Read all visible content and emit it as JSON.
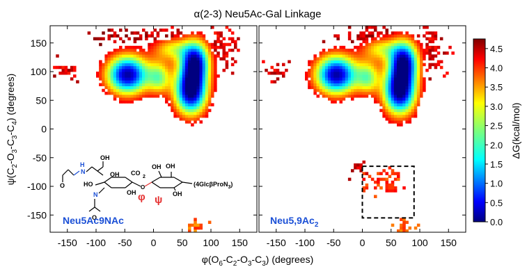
{
  "chart_data": {
    "type": "heatmap",
    "title": "α(2-3) Neu5Ac-Gal Linkage",
    "xlabel": {
      "base": "φ(O",
      "parts": [
        [
          "6",
          "sub"
        ],
        [
          "-C",
          ""
        ],
        [
          "2",
          "sub"
        ],
        [
          "-O",
          ""
        ],
        [
          "3",
          "sub"
        ],
        [
          "-C",
          ""
        ],
        [
          "3",
          "sub"
        ],
        [
          ") (degrees)",
          ""
        ]
      ]
    },
    "ylabel": {
      "base": "ψ(C",
      "parts": [
        [
          "2",
          "sub"
        ],
        [
          "-O",
          ""
        ],
        [
          "3",
          "sub"
        ],
        [
          "-C",
          ""
        ],
        [
          "3",
          "sub"
        ],
        [
          "-C",
          ""
        ],
        [
          "4",
          "sub"
        ],
        [
          ") (degrees)",
          ""
        ]
      ]
    },
    "xlim": [
      -180,
      180
    ],
    "ylim": [
      -180,
      180
    ],
    "xticks": [
      -150,
      -100,
      -50,
      0,
      50,
      100,
      150
    ],
    "yticks": [
      -150,
      -100,
      -50,
      0,
      50,
      100,
      150
    ],
    "colorbar": {
      "label": "ΔG(kcal/mol)",
      "min": 0.0,
      "max": 4.75,
      "ticks": [
        "0.0",
        "0.5",
        "1.0",
        "1.5",
        "2.0",
        "2.5",
        "3.0",
        "3.5",
        "4.0",
        "4.5"
      ],
      "colormap": "jet"
    },
    "panels": [
      {
        "name": "Neu5Ac9NAc",
        "label_color": "#1a4fd6",
        "minima": [
          {
            "phi": -45,
            "psi": 95,
            "sx": 26,
            "sy": 24,
            "depth": 4.6
          },
          {
            "phi": 65,
            "psi": 65,
            "sx": 20,
            "sy": 28,
            "depth": 4.7
          },
          {
            "phi": 72,
            "psi": 118,
            "sx": 18,
            "sy": 26,
            "depth": 4.3
          },
          {
            "phi": 10,
            "psi": 90,
            "sx": 14,
            "sy": 20,
            "depth": 2.0
          },
          {
            "phi": 30,
            "psi": 140,
            "sx": 22,
            "sy": 14,
            "depth": 1.6
          }
        ],
        "scatter_regions": [
          {
            "phi": -150,
            "psi": 100,
            "sx": 12,
            "sy": 10,
            "dg": 4.2
          },
          {
            "phi": 20,
            "psi": 160,
            "sx": 25,
            "sy": 10,
            "dg": 4.3
          },
          {
            "phi": 120,
            "psi": 140,
            "sx": 15,
            "sy": 25,
            "dg": 4.2
          },
          {
            "phi": -70,
            "psi": 160,
            "sx": 20,
            "sy": 8,
            "dg": 4.4
          },
          {
            "phi": 75,
            "psi": -170,
            "sx": 10,
            "sy": 8,
            "dg": 3.6
          }
        ],
        "inset": {
          "labels": [
            {
              "text": "O",
              "color": "#000000"
            },
            {
              "text": "H",
              "color": "#1a4fd6"
            },
            {
              "text": "N",
              "color": "#1a4fd6"
            },
            {
              "text": "OH",
              "color": "#000000"
            },
            {
              "text": "HO",
              "color": "#000000"
            },
            {
              "text": "CO",
              "color": "#000000"
            },
            {
              "text": "2",
              "color": "#000000"
            },
            {
              "text": "(4GlcβProN",
              "color": "#000000"
            },
            {
              "text": "3",
              "color": "#000000"
            },
            {
              "text": ")",
              "color": "#000000"
            },
            {
              "text": "φ",
              "color": "#e53030"
            },
            {
              "text": "ψ",
              "color": "#e53030"
            }
          ]
        }
      },
      {
        "name": "Neu5,9Ac",
        "name_sub": "2",
        "label_color": "#1a4fd6",
        "minima": [
          {
            "phi": -45,
            "psi": 95,
            "sx": 26,
            "sy": 24,
            "depth": 4.6
          },
          {
            "phi": 65,
            "psi": 65,
            "sx": 20,
            "sy": 28,
            "depth": 4.7
          },
          {
            "phi": 72,
            "psi": 118,
            "sx": 18,
            "sy": 26,
            "depth": 4.3
          },
          {
            "phi": 10,
            "psi": 90,
            "sx": 14,
            "sy": 20,
            "depth": 2.0
          },
          {
            "phi": 30,
            "psi": 140,
            "sx": 22,
            "sy": 14,
            "depth": 1.6
          },
          {
            "phi": 50,
            "psi": -100,
            "sx": 14,
            "sy": 10,
            "depth": 0.9
          }
        ],
        "scatter_regions": [
          {
            "phi": -150,
            "psi": 100,
            "sx": 12,
            "sy": 10,
            "dg": 4.2
          },
          {
            "phi": 20,
            "psi": 160,
            "sx": 25,
            "sy": 10,
            "dg": 4.3
          },
          {
            "phi": 120,
            "psi": 140,
            "sx": 15,
            "sy": 25,
            "dg": 4.2
          },
          {
            "phi": 40,
            "psi": -90,
            "sx": 22,
            "sy": 12,
            "dg": 3.8
          },
          {
            "phi": -10,
            "psi": -70,
            "sx": 10,
            "sy": 8,
            "dg": 4.2
          },
          {
            "phi": 70,
            "psi": -170,
            "sx": 10,
            "sy": 8,
            "dg": 3.6
          }
        ],
        "highlight_box": {
          "phi": [
            0,
            90
          ],
          "psi": [
            -155,
            -65
          ]
        }
      }
    ]
  }
}
